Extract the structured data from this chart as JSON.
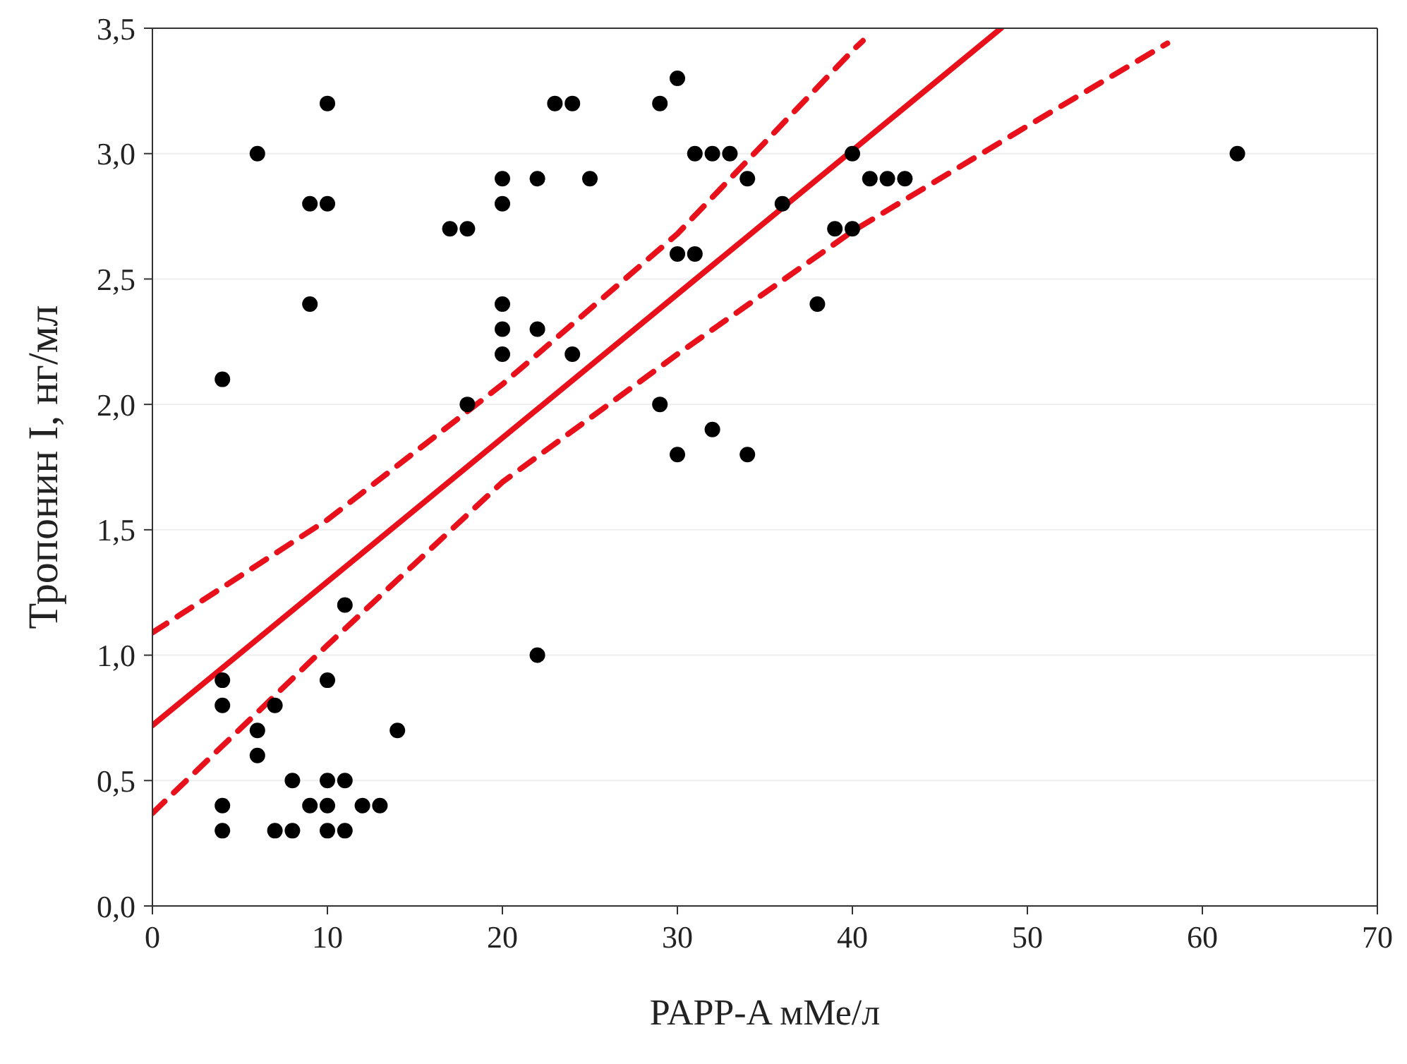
{
  "chart_data": {
    "type": "scatter",
    "xlabel": "PAPP-A мМе/л",
    "ylabel": "Тропонин I, нг/мл",
    "series": [
      {
        "color": "#000000",
        "marker": "circle",
        "x": [
          4,
          4,
          4,
          4,
          4,
          6,
          6,
          6,
          7,
          7,
          8,
          8,
          9,
          9,
          9,
          10,
          10,
          10,
          10,
          10,
          10,
          11,
          11,
          11,
          12,
          13,
          14,
          17,
          18,
          18,
          20,
          20,
          20,
          20,
          20,
          22,
          22,
          22,
          23,
          24,
          24,
          25,
          29,
          29,
          30,
          30,
          30,
          31,
          31,
          32,
          32,
          33,
          34,
          34,
          36,
          38,
          39,
          40,
          40,
          41,
          42,
          43,
          62
        ],
        "values": [
          2.1,
          0.9,
          0.8,
          0.4,
          0.3,
          3.0,
          0.7,
          0.6,
          0.8,
          0.3,
          0.5,
          0.3,
          2.8,
          2.4,
          0.4,
          3.2,
          2.8,
          0.9,
          0.5,
          0.4,
          0.3,
          1.2,
          0.5,
          0.3,
          0.4,
          0.4,
          0.7,
          2.7,
          2.7,
          2.0,
          2.9,
          2.8,
          2.4,
          2.3,
          2.2,
          2.9,
          2.3,
          1.0,
          3.2,
          3.2,
          2.2,
          2.9,
          3.2,
          2.0,
          3.3,
          2.6,
          1.8,
          3.0,
          2.6,
          3.0,
          1.9,
          3.0,
          2.9,
          1.8,
          2.8,
          2.4,
          2.7,
          3.0,
          2.7,
          2.9,
          2.9,
          2.9,
          3.0
        ]
      },
      {
        "type": "line",
        "color": "#e8101a",
        "line_style": "solid",
        "marker": "none",
        "x": [
          0,
          48.5
        ],
        "values": [
          0.72,
          3.5
        ]
      },
      {
        "type": "line",
        "color": "#e8101a",
        "line_style": "dashed",
        "marker": "none",
        "x": [
          0,
          10,
          20,
          30,
          40,
          40.6
        ],
        "values": [
          1.09,
          1.54,
          2.08,
          2.68,
          3.41,
          3.45
        ]
      },
      {
        "type": "line",
        "color": "#e8101a",
        "line_style": "dashed",
        "marker": "none",
        "x": [
          0,
          10,
          20,
          30,
          40,
          50,
          58
        ],
        "values": [
          0.37,
          1.04,
          1.69,
          2.2,
          2.69,
          3.11,
          3.44
        ]
      }
    ],
    "xlim": [
      0,
      70
    ],
    "xticks": [
      0,
      10,
      20,
      30,
      40,
      50,
      60,
      70
    ],
    "ylim": [
      0,
      3.5
    ],
    "yticks": [
      {
        "value": 0,
        "label": "0,0"
      },
      {
        "value": 0.5,
        "label": "0,5"
      },
      {
        "value": 1,
        "label": "1,0"
      },
      {
        "value": 1.5,
        "label": "1,5"
      },
      {
        "value": 2,
        "label": "2,0"
      },
      {
        "value": 2.5,
        "label": "2,5"
      },
      {
        "value": 3,
        "label": "3,0"
      },
      {
        "value": 3.5,
        "label": "3,5"
      }
    ],
    "grid": "y"
  }
}
